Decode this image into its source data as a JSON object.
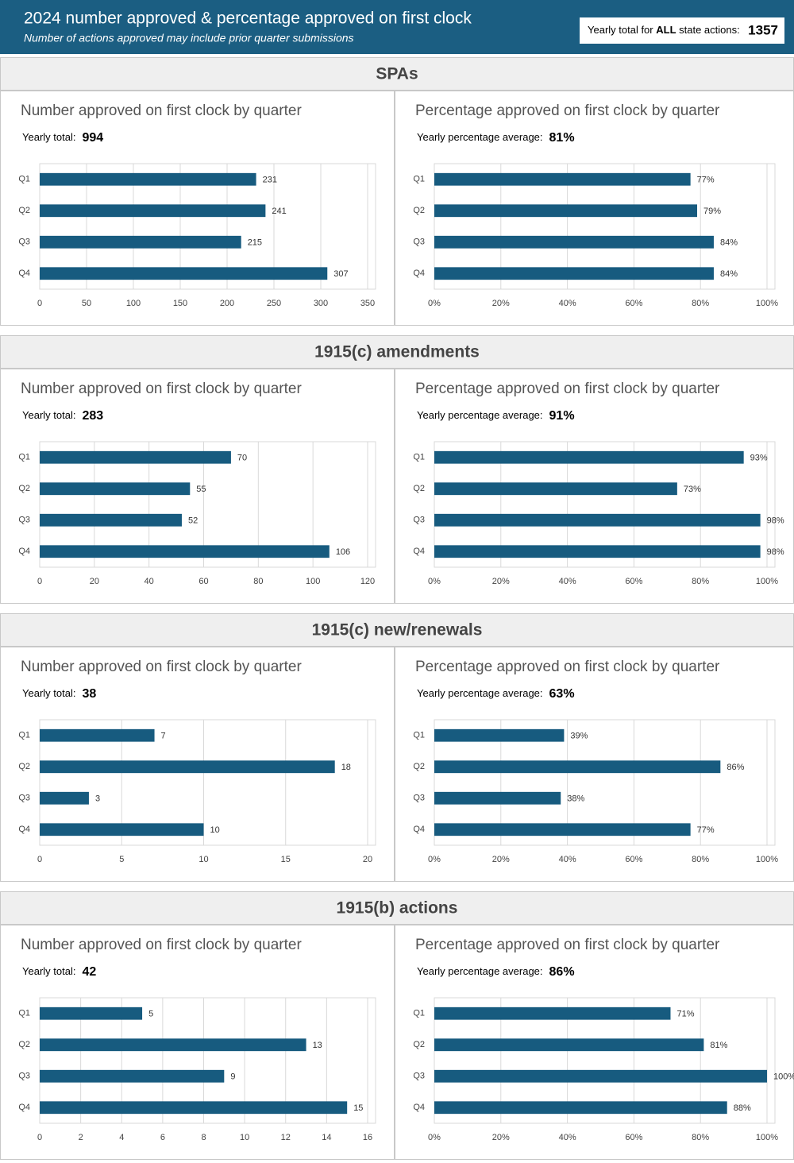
{
  "header": {
    "title": "2024 number approved & percentage approved on first clock",
    "subtitle": "Number of actions approved may include prior quarter submissions",
    "total_label_start": "Yearly total for ",
    "total_label_bold": "ALL",
    "total_label_end": " state actions:",
    "total_value": 1357
  },
  "sections": [
    {
      "title": "SPAs"
    },
    {
      "title": "1915(c) amendments"
    },
    {
      "title": "1915(c) new/renewals"
    },
    {
      "title": "1915(b) actions"
    }
  ],
  "chart_data": [
    {
      "type": "bar",
      "title": "Number approved on first clock by quarter",
      "note_label": "Yearly total:",
      "note_value": 994,
      "categories": [
        "Q1",
        "Q2",
        "Q3",
        "Q4"
      ],
      "values": [
        231,
        241,
        215,
        307
      ],
      "color": "#175b7f",
      "xlim": [
        0,
        350
      ],
      "xticks": [
        0,
        50,
        100,
        150,
        200,
        250,
        300,
        350
      ],
      "grid": true
    },
    {
      "type": "bar",
      "title": "Percentage approved on first clock by quarter",
      "note_label": "Yearly percentage average:",
      "note_value": "81%",
      "categories": [
        "Q1",
        "Q2",
        "Q3",
        "Q4"
      ],
      "values": [
        77,
        79,
        84,
        84
      ],
      "value_labels": [
        "77%",
        "79%",
        "84%",
        "84%"
      ],
      "color": "#175b7f",
      "xlim": [
        0,
        100
      ],
      "xticks": [
        {
          "value": 0,
          "label": "0%"
        },
        {
          "value": 20,
          "label": "20%"
        },
        {
          "value": 40,
          "label": "40%"
        },
        {
          "value": 60,
          "label": "60%"
        },
        {
          "value": 80,
          "label": "80%"
        },
        {
          "value": 100,
          "label": "100%"
        }
      ],
      "grid": true
    },
    {
      "type": "bar",
      "title": "Number approved on first clock by quarter",
      "note_label": "Yearly total:",
      "note_value": 283,
      "categories": [
        "Q1",
        "Q2",
        "Q3",
        "Q4"
      ],
      "values": [
        70,
        55,
        52,
        106
      ],
      "color": "#175b7f",
      "xlim": [
        0,
        120
      ],
      "xticks": [
        0,
        20,
        40,
        60,
        80,
        100,
        120
      ],
      "grid": true
    },
    {
      "type": "bar",
      "title": "Percentage approved on first clock by quarter",
      "note_label": "Yearly percentage average:",
      "note_value": "91%",
      "categories": [
        "Q1",
        "Q2",
        "Q3",
        "Q4"
      ],
      "values": [
        93,
        73,
        98,
        98
      ],
      "value_labels": [
        "93%",
        "73%",
        "98%",
        "98%"
      ],
      "color": "#175b7f",
      "xlim": [
        0,
        100
      ],
      "xticks": [
        {
          "value": 0,
          "label": "0%"
        },
        {
          "value": 20,
          "label": "20%"
        },
        {
          "value": 40,
          "label": "40%"
        },
        {
          "value": 60,
          "label": "60%"
        },
        {
          "value": 80,
          "label": "80%"
        },
        {
          "value": 100,
          "label": "100%"
        }
      ],
      "grid": true
    },
    {
      "type": "bar",
      "title": "Number approved on first clock by quarter",
      "note_label": "Yearly total:",
      "note_value": 38,
      "categories": [
        "Q1",
        "Q2",
        "Q3",
        "Q4"
      ],
      "values": [
        7,
        18,
        3,
        10
      ],
      "color": "#175b7f",
      "xlim": [
        0,
        20
      ],
      "xticks": [
        0,
        5,
        10,
        15,
        20
      ],
      "grid": true
    },
    {
      "type": "bar",
      "title": "Percentage approved on first clock by quarter",
      "note_label": "Yearly percentage average:",
      "note_value": "63%",
      "categories": [
        "Q1",
        "Q2",
        "Q3",
        "Q4"
      ],
      "values": [
        39,
        86,
        38,
        77
      ],
      "value_labels": [
        "39%",
        "86%",
        "38%",
        "77%"
      ],
      "color": "#175b7f",
      "xlim": [
        0,
        100
      ],
      "xticks": [
        {
          "value": 0,
          "label": "0%"
        },
        {
          "value": 20,
          "label": "20%"
        },
        {
          "value": 40,
          "label": "40%"
        },
        {
          "value": 60,
          "label": "60%"
        },
        {
          "value": 80,
          "label": "80%"
        },
        {
          "value": 100,
          "label": "100%"
        }
      ],
      "grid": true
    },
    {
      "type": "bar",
      "title": "Number approved on first clock by quarter",
      "note_label": "Yearly total:",
      "note_value": 42,
      "categories": [
        "Q1",
        "Q2",
        "Q3",
        "Q4"
      ],
      "values": [
        5,
        13,
        9,
        15
      ],
      "color": "#175b7f",
      "xlim": [
        0,
        16
      ],
      "xticks": [
        0,
        2,
        4,
        6,
        8,
        10,
        12,
        14,
        16
      ],
      "grid": true
    },
    {
      "type": "bar",
      "title": "Percentage approved on first clock by quarter",
      "note_label": "Yearly percentage average:",
      "note_value": "86%",
      "categories": [
        "Q1",
        "Q2",
        "Q3",
        "Q4"
      ],
      "values": [
        71,
        81,
        100,
        88
      ],
      "value_labels": [
        "71%",
        "81%",
        "100%",
        "88%"
      ],
      "color": "#175b7f",
      "xlim": [
        0,
        100
      ],
      "xticks": [
        {
          "value": 0,
          "label": "0%"
        },
        {
          "value": 20,
          "label": "20%"
        },
        {
          "value": 40,
          "label": "40%"
        },
        {
          "value": 60,
          "label": "60%"
        },
        {
          "value": 80,
          "label": "80%"
        },
        {
          "value": 100,
          "label": "100%"
        }
      ],
      "grid": true
    }
  ]
}
